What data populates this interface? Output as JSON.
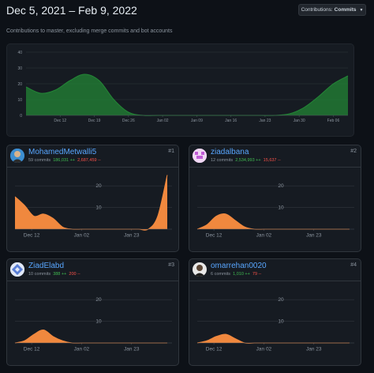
{
  "header": {
    "date_range": "Dec 5, 2021 – Feb 9, 2022",
    "subtitle": "Contributions to master, excluding merge commits and bot accounts",
    "button_prefix": "Contributions:",
    "button_value": "Commits"
  },
  "colors": {
    "main_area": "#238636",
    "contributor_area": "#f0883e"
  },
  "chart_data": [
    {
      "type": "area",
      "x": [
        "Dec 5",
        "Dec 8",
        "Dec 11",
        "Dec 14",
        "Dec 17",
        "Dec 20",
        "Dec 23",
        "Dec 26",
        "Dec 29",
        "Jan 1",
        "Jan 4",
        "Jan 7",
        "Jan 10",
        "Jan 13",
        "Jan 16",
        "Jan 19",
        "Jan 22",
        "Jan 25",
        "Jan 28",
        "Jan 31",
        "Feb 3",
        "Feb 6",
        "Feb 9"
      ],
      "series": [
        {
          "values": [
            18,
            14,
            16,
            22,
            26,
            22,
            10,
            2,
            0,
            0,
            0,
            0,
            0,
            0,
            0,
            0,
            0,
            0,
            1,
            5,
            12,
            20,
            25
          ]
        }
      ],
      "xticks": [
        "Dec 12",
        "Dec 19",
        "Dec 26",
        "Jan 02",
        "Jan 09",
        "Jan 16",
        "Jan 23",
        "Jan 30",
        "Feb 06"
      ],
      "yticks": [
        "0",
        "10",
        "20",
        "30",
        "40"
      ],
      "ylim": [
        0,
        40
      ]
    },
    {
      "type": "area",
      "x": [
        "Dec 5",
        "Dec 9",
        "Dec 13",
        "Dec 17",
        "Dec 21",
        "Dec 25",
        "Dec 29",
        "Jan 2",
        "Jan 6",
        "Jan 10",
        "Jan 14",
        "Jan 18",
        "Jan 22",
        "Jan 26",
        "Jan 30",
        "Feb 3",
        "Feb 7"
      ],
      "series": [
        {
          "values": [
            15,
            11,
            6,
            7,
            5,
            1,
            0,
            0,
            0,
            0,
            0,
            0,
            0,
            0,
            0,
            6,
            25
          ]
        }
      ],
      "xticks": [
        "Dec 12",
        "Jan 02",
        "Jan 23"
      ],
      "yticks": [
        "10",
        "20"
      ],
      "ylim": [
        0,
        27
      ]
    },
    {
      "type": "area",
      "x": [
        "Dec 5",
        "Dec 9",
        "Dec 13",
        "Dec 17",
        "Dec 21",
        "Dec 25",
        "Dec 29",
        "Jan 2",
        "Jan 6",
        "Jan 10",
        "Jan 14",
        "Jan 18",
        "Jan 22",
        "Jan 26",
        "Jan 30",
        "Feb 3",
        "Feb 7"
      ],
      "series": [
        {
          "values": [
            0,
            2,
            6,
            7,
            4,
            1,
            0,
            0,
            0,
            0,
            0,
            0,
            0,
            0,
            0,
            0,
            0
          ]
        }
      ],
      "xticks": [
        "Dec 12",
        "Jan 02",
        "Jan 23"
      ],
      "yticks": [
        "10",
        "20"
      ],
      "ylim": [
        0,
        27
      ]
    },
    {
      "type": "area",
      "x": [
        "Dec 5",
        "Dec 9",
        "Dec 13",
        "Dec 17",
        "Dec 21",
        "Dec 25",
        "Dec 29",
        "Jan 2",
        "Jan 6",
        "Jan 10",
        "Jan 14",
        "Jan 18",
        "Jan 22",
        "Jan 26",
        "Jan 30",
        "Feb 3",
        "Feb 7"
      ],
      "series": [
        {
          "values": [
            0,
            1,
            4,
            6,
            3,
            1,
            0,
            0,
            0,
            0,
            0,
            0,
            0,
            0,
            0,
            0,
            0
          ]
        }
      ],
      "xticks": [
        "Dec 12",
        "Jan 02",
        "Jan 23"
      ],
      "yticks": [
        "10",
        "20"
      ],
      "ylim": [
        0,
        27
      ]
    },
    {
      "type": "area",
      "x": [
        "Dec 5",
        "Dec 9",
        "Dec 13",
        "Dec 17",
        "Dec 21",
        "Dec 25",
        "Dec 29",
        "Jan 2",
        "Jan 6",
        "Jan 10",
        "Jan 14",
        "Jan 18",
        "Jan 22",
        "Jan 26",
        "Jan 30",
        "Feb 3",
        "Feb 7"
      ],
      "series": [
        {
          "values": [
            0,
            1,
            3,
            4,
            2,
            0,
            0,
            0,
            0,
            0,
            0,
            0,
            0,
            0,
            0,
            0,
            0
          ]
        }
      ],
      "xticks": [
        "Dec 12",
        "Jan 02",
        "Jan 23"
      ],
      "yticks": [
        "10",
        "20"
      ],
      "ylim": [
        0,
        27
      ]
    }
  ],
  "contributors": [
    {
      "rank": "#1",
      "name": "MohamedMetwalli5",
      "commits": "59 commits",
      "additions": "186,031 ++",
      "deletions": "2,687,459 --",
      "avatar_icon": "user-photo-avatar"
    },
    {
      "rank": "#2",
      "name": "ziadalbana",
      "commits": "12 commits",
      "additions": "2,534,993 ++",
      "deletions": "15,637 --",
      "avatar_icon": "identicon-avatar"
    },
    {
      "rank": "#3",
      "name": "ZiadElabd",
      "commits": "10 commits",
      "additions": "388 ++",
      "deletions": "200 --",
      "avatar_icon": "identicon-avatar"
    },
    {
      "rank": "#4",
      "name": "omarrehan0020",
      "commits": "6 commits",
      "additions": "1,010 ++",
      "deletions": "79 --",
      "avatar_icon": "user-photo-avatar"
    }
  ]
}
